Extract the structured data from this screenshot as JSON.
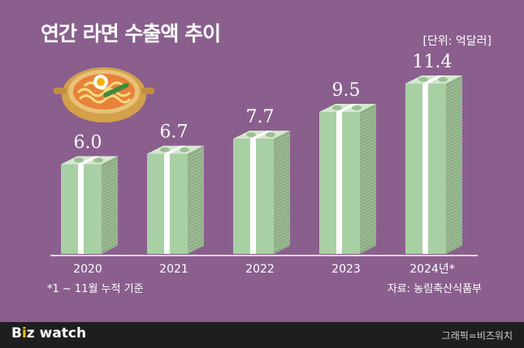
{
  "colors": {
    "background": "#8a5f8e",
    "footer": "#1e1e1e",
    "bill_front": "#a9cfa5",
    "bill_side": "#8fae86",
    "bill_top": "#d5e8cf",
    "band": "#ffffff",
    "accent_i": "#f2c21a"
  },
  "header": {
    "title": "연간 라면 수출액 추이",
    "unit": "[단위: 억달러]"
  },
  "chart_data": {
    "type": "bar",
    "title": "연간 라면 수출액 추이",
    "categories": [
      "2020",
      "2021",
      "2022",
      "2023",
      "2024년*"
    ],
    "values": [
      6.0,
      6.7,
      7.7,
      9.5,
      11.4
    ],
    "value_labels": [
      "6.0",
      "6.7",
      "7.7",
      "9.5",
      "11.4"
    ],
    "ylim": [
      0,
      11.4
    ],
    "grid": false,
    "legend": "none"
  },
  "notes": {
    "footnote": "*1 ~ 11월 누적 기준",
    "source": "자료: 농림축산식품부"
  },
  "footer": {
    "brand_b": "B",
    "brand_i": "i",
    "brand_rest": "z watch",
    "credit": "그래픽=비즈워치"
  },
  "illustration": {
    "icon": "ramen-pot-icon"
  }
}
